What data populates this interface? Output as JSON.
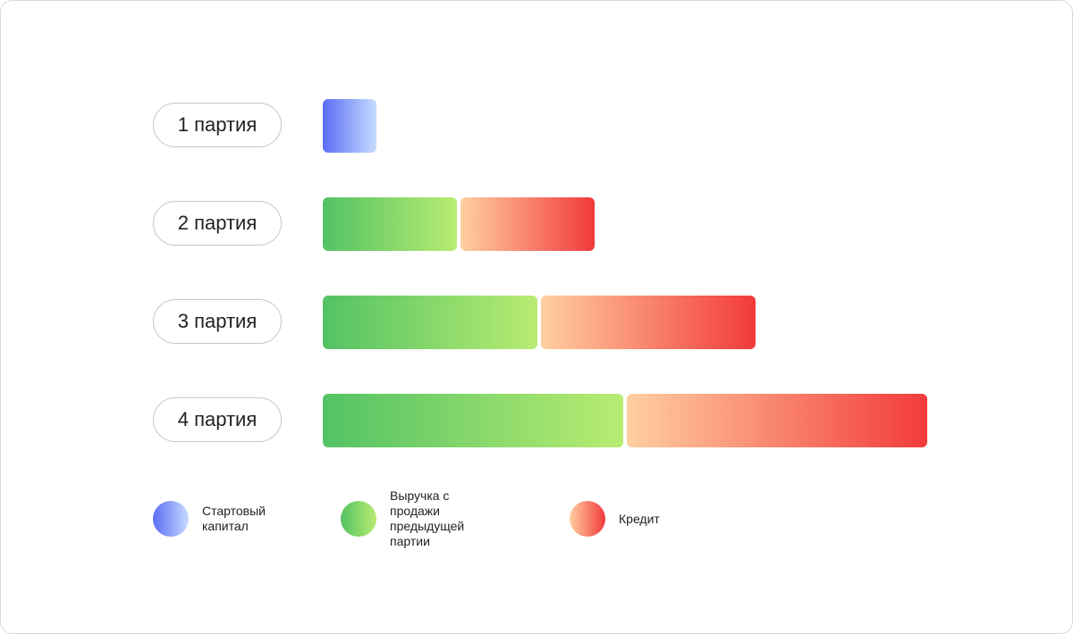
{
  "chart_data": {
    "type": "bar",
    "orientation": "horizontal",
    "stacked": true,
    "categories": [
      "1 партия",
      "2 партия",
      "3 партия",
      "4 партия"
    ],
    "series": [
      {
        "name": "Стартовый\nкапитал",
        "key": "start",
        "values": [
          1,
          0,
          0,
          0
        ]
      },
      {
        "name": "Выручка с продажи\nпредыдущей партии",
        "key": "revenue",
        "values": [
          0,
          2.5,
          4,
          5.6
        ]
      },
      {
        "name": "Кредит",
        "key": "credit",
        "values": [
          0,
          2.5,
          4,
          5.6
        ]
      }
    ],
    "title": "",
    "xlabel": "",
    "ylabel": "",
    "grid": false,
    "legend_position": "bottom",
    "colors": {
      "start": [
        "#5b6cf6",
        "#c6dcff"
      ],
      "revenue": [
        "#53c264",
        "#b8ec72"
      ],
      "credit": [
        "#ffcfa0",
        "#f23a3a"
      ]
    }
  }
}
